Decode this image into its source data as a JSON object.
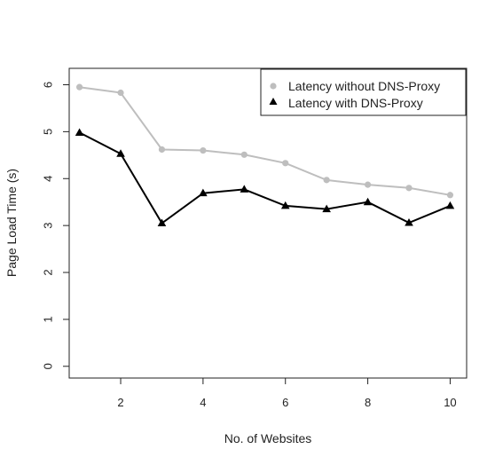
{
  "chart_data": {
    "type": "line",
    "title": "",
    "xlabel": "No. of Websites",
    "ylabel": "Page Load Time (s)",
    "xlim": [
      0.75,
      10.4
    ],
    "ylim": [
      -0.25,
      6.35
    ],
    "x_ticks": [
      2,
      4,
      6,
      8,
      10
    ],
    "x_tick_labels": [
      "2",
      "4",
      "6",
      "8",
      "10"
    ],
    "y_ticks": [
      0,
      1,
      2,
      3,
      4,
      5,
      6
    ],
    "y_tick_labels": [
      "0",
      "1",
      "2",
      "3",
      "4",
      "5",
      "6"
    ],
    "grid": false,
    "legend_position": "top-right",
    "x": [
      1,
      2,
      3,
      4,
      5,
      6,
      7,
      8,
      9,
      10
    ],
    "series": [
      {
        "name": "Latency without DNS-Proxy",
        "values": [
          5.95,
          5.83,
          4.62,
          4.6,
          4.51,
          4.33,
          3.97,
          3.87,
          3.8,
          3.65
        ],
        "color": "#bebebe",
        "marker": "circle"
      },
      {
        "name": "Latency with DNS-Proxy",
        "values": [
          4.98,
          4.53,
          3.05,
          3.69,
          3.77,
          3.42,
          3.35,
          3.5,
          3.06,
          3.42
        ],
        "color": "#000000",
        "marker": "triangle"
      }
    ]
  }
}
